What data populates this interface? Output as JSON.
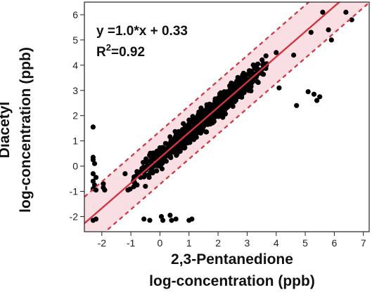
{
  "chart_data": {
    "type": "scatter",
    "xlabel": [
      "2,3-Pentanedione",
      "log-concentration (ppb)"
    ],
    "ylabel": [
      "Diacetyl",
      "log-concentration (ppb)"
    ],
    "xlim": [
      -2.6,
      7.2
    ],
    "ylim": [
      -2.6,
      6.5
    ],
    "x_ticks": [
      -2,
      -1,
      0,
      1,
      2,
      3,
      4,
      5,
      6,
      7
    ],
    "y_ticks": [
      -2,
      -1,
      0,
      1,
      2,
      3,
      4,
      5,
      6
    ],
    "grid": false,
    "fit": {
      "slope": 1.0,
      "intercept": 0.33,
      "band_halfwidth": 1.05,
      "color": "#d0343f",
      "band_color": "#f9dfe3"
    },
    "annotations": {
      "equation": "y =1.0*x + 0.33",
      "r2_prefix": "R",
      "r2_sup": "2",
      "r2_suffix": "=0.92"
    },
    "cloud": {
      "x_range": [
        -1.1,
        3.8
      ],
      "spread": 0.45
    },
    "points": [
      [
        -2.3,
        1.55
      ],
      [
        -2.3,
        0.35
      ],
      [
        -2.3,
        0.25
      ],
      [
        -2.25,
        0.1
      ],
      [
        -2.3,
        -0.3
      ],
      [
        -2.2,
        -0.45
      ],
      [
        -2.3,
        -0.6
      ],
      [
        -2.25,
        -0.75
      ],
      [
        -2.3,
        -0.9
      ],
      [
        -2.2,
        -0.95
      ],
      [
        -2.3,
        -2.15
      ],
      [
        -2.2,
        -2.1
      ],
      [
        -1.95,
        -0.7
      ],
      [
        -1.95,
        -0.85
      ],
      [
        -1.9,
        -0.95
      ],
      [
        -0.55,
        -2.1
      ],
      [
        -0.35,
        -2.15
      ],
      [
        0.05,
        -2.0
      ],
      [
        0.1,
        -2.15
      ],
      [
        0.35,
        -1.95
      ],
      [
        0.4,
        -2.15
      ],
      [
        0.55,
        -2.1
      ],
      [
        1.0,
        -2.15
      ],
      [
        1.1,
        -2.1
      ],
      [
        -1.1,
        -0.95
      ],
      [
        -0.9,
        -0.55
      ],
      [
        -1.2,
        -0.3
      ],
      [
        -0.5,
        -0.8
      ],
      [
        4.0,
        4.5
      ],
      [
        4.1,
        3.1
      ],
      [
        4.6,
        4.4
      ],
      [
        4.7,
        2.4
      ],
      [
        5.1,
        2.95
      ],
      [
        5.3,
        2.85
      ],
      [
        5.4,
        2.6
      ],
      [
        5.5,
        2.75
      ],
      [
        5.6,
        6.1
      ],
      [
        5.8,
        5.4
      ],
      [
        5.9,
        5.0
      ],
      [
        6.4,
        6.1
      ],
      [
        6.6,
        5.8
      ],
      [
        5.2,
        5.3
      ]
    ],
    "point_color": "#000000"
  }
}
